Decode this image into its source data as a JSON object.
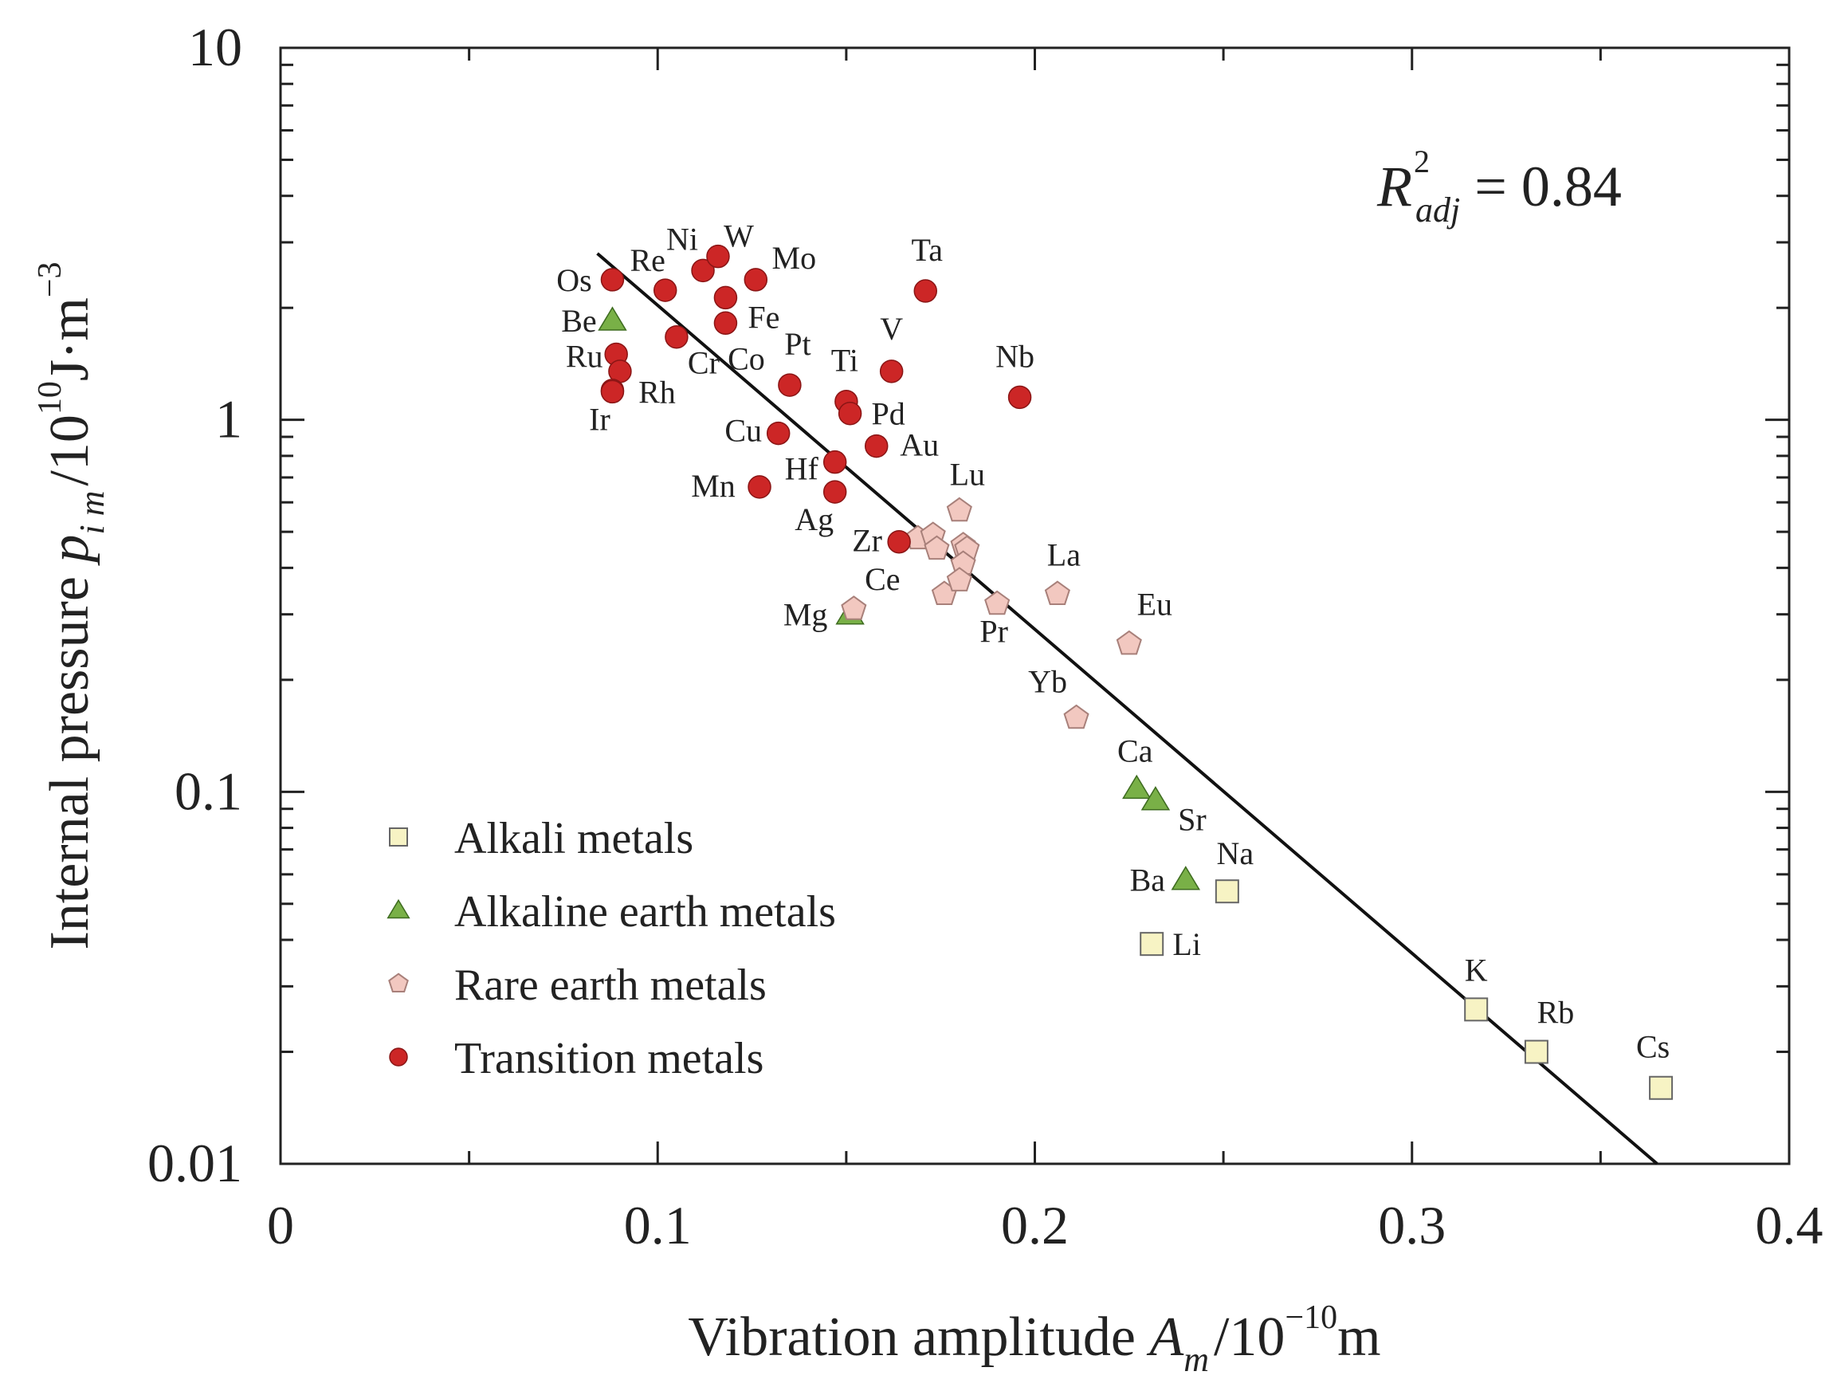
{
  "chart_data": {
    "type": "scatter",
    "title": "",
    "xlabel": "Vibration amplitude A_m /10^-10 m",
    "ylabel": "Internal pressure p_im /10^10 J·m^-3",
    "x_axis": {
      "pre": "Vibration amplitude ",
      "var": "A",
      "sub": "m",
      "unit_pre": "/10",
      "sup": "−10",
      "unit_post": "m"
    },
    "y_axis": {
      "pre": "Internal pressure ",
      "var": "p",
      "sub": "i m",
      "unit_pre": "/10",
      "sup": "10",
      "unit_mid": "J·m",
      "sup2": "−3"
    },
    "xlim": [
      0,
      0.4
    ],
    "ylim": [
      0.01,
      10
    ],
    "yscale": "log",
    "xticks": [
      0,
      0.1,
      0.2,
      0.3,
      0.4
    ],
    "xtick_labels": [
      "0",
      "0.1",
      "0.2",
      "0.3",
      "0.4"
    ],
    "yticks": [
      0.01,
      0.1,
      1,
      10
    ],
    "ytick_labels": [
      "0.01",
      "0.1",
      "1",
      "10"
    ],
    "annotation": {
      "base": "R",
      "sup": "2",
      "sub": "adj",
      "value": " = 0.84"
    },
    "fit_line": {
      "x": [
        0.084,
        0.365
      ],
      "y": [
        2.8,
        0.01
      ]
    },
    "legend": {
      "placement": "lower-left",
      "entries": [
        {
          "label": "Alkali metals",
          "marker": "square",
          "color": "#f7f3c4",
          "edge": "#666666"
        },
        {
          "label": "Alkaline earth metals",
          "marker": "triangle",
          "color": "#79b047",
          "edge": "#3d6b1f"
        },
        {
          "label": "Rare earth metals",
          "marker": "pentagon",
          "color": "#f2c8c0",
          "edge": "#a8807a"
        },
        {
          "label": "Transition metals",
          "marker": "circle",
          "color": "#cc2626",
          "edge": "#8a1515"
        }
      ]
    },
    "series": [
      {
        "name": "Alkali metals",
        "points": [
          {
            "label": "Na",
            "x": 0.251,
            "y": 0.054
          },
          {
            "label": "Li",
            "x": 0.231,
            "y": 0.039
          },
          {
            "label": "K",
            "x": 0.317,
            "y": 0.026
          },
          {
            "label": "Rb",
            "x": 0.333,
            "y": 0.02
          },
          {
            "label": "Cs",
            "x": 0.366,
            "y": 0.016
          }
        ]
      },
      {
        "name": "Alkaline earth metals",
        "points": [
          {
            "label": "Be",
            "x": 0.088,
            "y": 1.85
          },
          {
            "label": "Mg",
            "x": 0.151,
            "y": 0.3
          },
          {
            "label": "Ca",
            "x": 0.227,
            "y": 0.102
          },
          {
            "label": "Sr",
            "x": 0.232,
            "y": 0.095
          },
          {
            "label": "Ba",
            "x": 0.24,
            "y": 0.058
          }
        ]
      },
      {
        "name": "Rare earth metals",
        "points": [
          {
            "label": "Ce",
            "x": 0.152,
            "y": 0.31
          },
          {
            "label": "Lu",
            "x": 0.18,
            "y": 0.57
          },
          {
            "label": "La",
            "x": 0.206,
            "y": 0.34
          },
          {
            "label": "Eu",
            "x": 0.225,
            "y": 0.25
          },
          {
            "label": "Pr",
            "x": 0.19,
            "y": 0.32
          },
          {
            "label": "Yb",
            "x": 0.211,
            "y": 0.158
          },
          {
            "label": "",
            "x": 0.169,
            "y": 0.48
          },
          {
            "label": "",
            "x": 0.173,
            "y": 0.49
          },
          {
            "label": "",
            "x": 0.174,
            "y": 0.45
          },
          {
            "label": "",
            "x": 0.181,
            "y": 0.46
          },
          {
            "label": "",
            "x": 0.182,
            "y": 0.45
          },
          {
            "label": "",
            "x": 0.181,
            "y": 0.41
          },
          {
            "label": "",
            "x": 0.176,
            "y": 0.34
          },
          {
            "label": "",
            "x": 0.18,
            "y": 0.37
          }
        ]
      },
      {
        "name": "Transition metals",
        "points": [
          {
            "label": "Os",
            "x": 0.088,
            "y": 2.38
          },
          {
            "label": "Re",
            "x": 0.102,
            "y": 2.23
          },
          {
            "label": "Ni",
            "x": 0.112,
            "y": 2.52
          },
          {
            "label": "W",
            "x": 0.116,
            "y": 2.75
          },
          {
            "label": "Mo",
            "x": 0.126,
            "y": 2.38
          },
          {
            "label": "Fe",
            "x": 0.118,
            "y": 2.13
          },
          {
            "label": "Co",
            "x": 0.118,
            "y": 1.82
          },
          {
            "label": "Ta",
            "x": 0.171,
            "y": 2.22
          },
          {
            "label": "Ru",
            "x": 0.089,
            "y": 1.5
          },
          {
            "label": "",
            "x": 0.09,
            "y": 1.35
          },
          {
            "label": "Cr",
            "x": 0.105,
            "y": 1.67
          },
          {
            "label": "Rh",
            "x": 0.088,
            "y": 1.2
          },
          {
            "label": "Ir",
            "x": 0.088,
            "y": 1.19
          },
          {
            "label": "Pt",
            "x": 0.135,
            "y": 1.24
          },
          {
            "label": "V",
            "x": 0.162,
            "y": 1.35
          },
          {
            "label": "Ti",
            "x": 0.15,
            "y": 1.12
          },
          {
            "label": "Pd",
            "x": 0.151,
            "y": 1.04
          },
          {
            "label": "Nb",
            "x": 0.196,
            "y": 1.15
          },
          {
            "label": "Cu",
            "x": 0.132,
            "y": 0.92
          },
          {
            "label": "Au",
            "x": 0.158,
            "y": 0.85
          },
          {
            "label": "Hf",
            "x": 0.147,
            "y": 0.77
          },
          {
            "label": "Mn",
            "x": 0.127,
            "y": 0.66
          },
          {
            "label": "Ag",
            "x": 0.147,
            "y": 0.64
          },
          {
            "label": "Zr",
            "x": 0.164,
            "y": 0.47
          }
        ]
      }
    ]
  }
}
